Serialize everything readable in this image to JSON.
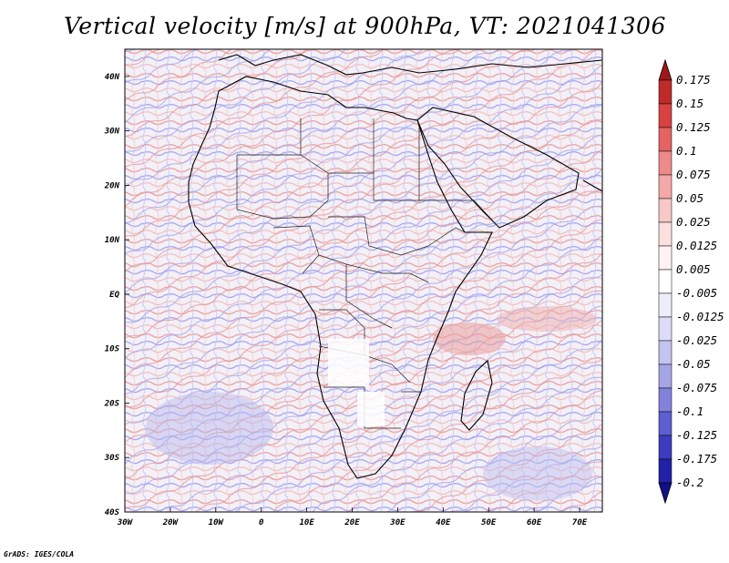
{
  "title": "Vertical velocity [m/s] at 900hPa, VT: 2021041306",
  "credit": "GrADS: IGES/COLA",
  "map": {
    "lon_range": [
      -30,
      75
    ],
    "lat_range": [
      -40,
      45
    ],
    "lon_ticks": [
      "30W",
      "20W",
      "10W",
      "0",
      "10E",
      "20E",
      "30E",
      "40E",
      "50E",
      "60E",
      "70E"
    ],
    "lat_ticks": [
      "40S",
      "30S",
      "20S",
      "10S",
      "EQ",
      "10N",
      "20N",
      "30N",
      "40N"
    ],
    "field": "vertical velocity",
    "coastlines": true,
    "country_borders": true
  },
  "colorbar": {
    "labels": [
      "0.175",
      "0.15",
      "0.125",
      "0.1",
      "0.075",
      "0.05",
      "0.025",
      "0.0125",
      "0.005",
      "-0.005",
      "-0.0125",
      "-0.025",
      "-0.05",
      "-0.075",
      "-0.1",
      "-0.125",
      "-0.175",
      "-0.2"
    ],
    "colors": [
      "#a01818",
      "#bf2b2b",
      "#d84242",
      "#e66363",
      "#ef8a8a",
      "#f4a8a8",
      "#f8c8c8",
      "#fbe0e0",
      "#fff2f2",
      "#ffffff",
      "#eeeefb",
      "#dcdcf6",
      "#c4c4f0",
      "#a5a5e6",
      "#8282dc",
      "#5e5ed0",
      "#3c3cc0",
      "#2222a8",
      "#10108a"
    ]
  }
}
